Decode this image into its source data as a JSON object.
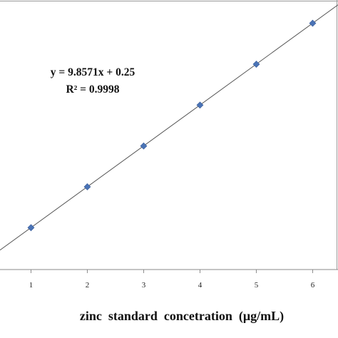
{
  "chart_data": {
    "type": "scatter",
    "x": [
      1,
      2,
      3,
      4,
      5,
      6
    ],
    "y": [
      10.1,
      19.95,
      29.8,
      39.66,
      49.52,
      59.4
    ],
    "xlabel": "zinc  standard  concetration  (μg/mL)",
    "ylabel": "",
    "x_ticks": [
      "1",
      "2",
      "3",
      "4",
      "5",
      "6"
    ],
    "xlim": [
      0.45,
      6.45
    ],
    "ylim": [
      0,
      65
    ],
    "grid": false,
    "marker": "diamond",
    "marker_color": "#4a73b5",
    "trendline": {
      "slope": 9.8571,
      "intercept": 0.25,
      "color": "#555555"
    },
    "annotations": {
      "equation": "y = 9.8571x + 0.25",
      "r_squared": "R² = 0.9998"
    }
  }
}
